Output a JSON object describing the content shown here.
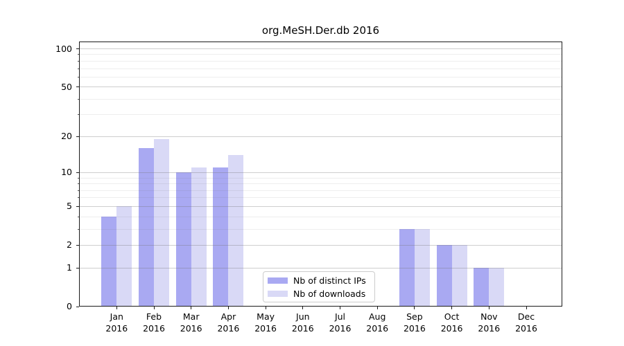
{
  "figure": {
    "title": "org.MeSH.Der.db 2016",
    "background": "#ffffff"
  },
  "legend": {
    "items": [
      {
        "label": "Nb of distinct IPs",
        "color": "#a9a9f2"
      },
      {
        "label": "Nb of downloads",
        "color": "#d9d9f6"
      }
    ]
  },
  "chart_data": {
    "type": "bar",
    "title": "org.MeSH.Der.db 2016",
    "categories": [
      "Jan\n2016",
      "Feb\n2016",
      "Mar\n2016",
      "Apr\n2016",
      "May\n2016",
      "Jun\n2016",
      "Jul\n2016",
      "Aug\n2016",
      "Sep\n2016",
      "Oct\n2016",
      "Nov\n2016",
      "Dec\n2016"
    ],
    "series": [
      {
        "name": "Nb of distinct IPs",
        "color": "#a9a9f2",
        "values": [
          4,
          16,
          10,
          11,
          0,
          0,
          0,
          0,
          3,
          2,
          1,
          0
        ]
      },
      {
        "name": "Nb of downloads",
        "color": "#d9d9f6",
        "values": [
          5,
          19,
          11,
          14,
          0,
          0,
          0,
          0,
          3,
          2,
          1,
          0
        ]
      }
    ],
    "xlabel": "",
    "ylabel": "",
    "y_scale": "log1p",
    "ylim": [
      0,
      114
    ],
    "yticks": [
      0,
      1,
      2,
      5,
      10,
      20,
      50,
      100
    ],
    "minor_yticks": [
      3,
      4,
      6,
      7,
      8,
      9,
      30,
      40,
      60,
      70,
      80,
      90
    ],
    "grid": true,
    "grid_over_bars": true,
    "legend_position": "lower-center"
  }
}
